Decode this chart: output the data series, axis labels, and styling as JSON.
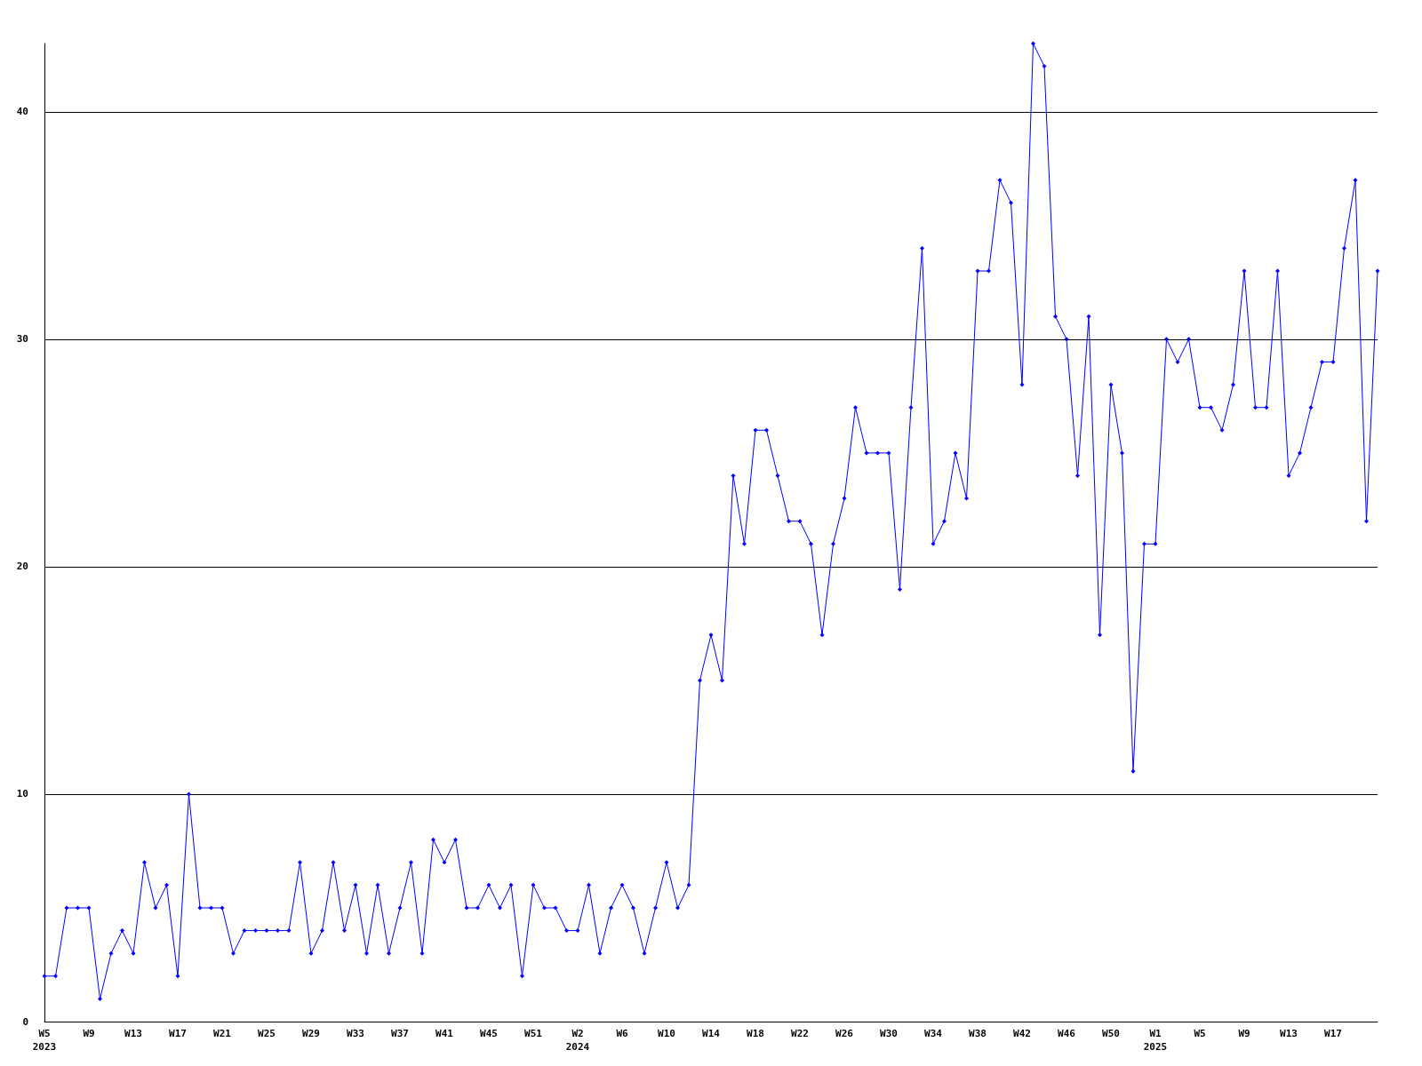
{
  "chart_data": {
    "type": "line",
    "categories": [
      "W5\n2023",
      null,
      null,
      null,
      "W9",
      null,
      null,
      null,
      "W13",
      null,
      null,
      null,
      "W17",
      null,
      null,
      null,
      "W21",
      null,
      null,
      null,
      "W25",
      null,
      null,
      null,
      "W29",
      null,
      null,
      null,
      "W33",
      null,
      null,
      null,
      "W37",
      null,
      null,
      null,
      "W41",
      null,
      null,
      null,
      "W45",
      null,
      null,
      null,
      "W51",
      null,
      null,
      null,
      "W2\n2024",
      null,
      null,
      null,
      "W6",
      null,
      null,
      null,
      "W10",
      null,
      null,
      null,
      "W14",
      null,
      null,
      null,
      "W18",
      null,
      null,
      null,
      "W22",
      null,
      null,
      null,
      "W26",
      null,
      null,
      null,
      "W30",
      null,
      null,
      null,
      "W34",
      null,
      null,
      null,
      "W38",
      null,
      null,
      null,
      "W42",
      null,
      null,
      null,
      "W46",
      null,
      null,
      null,
      "W50",
      null,
      null,
      null,
      "W1\n2025",
      null,
      null,
      null,
      "W5",
      null,
      null,
      null,
      "W9",
      null,
      null,
      null,
      "W13",
      null,
      null,
      null,
      "W17",
      null,
      null,
      null,
      null
    ],
    "series": [
      {
        "color": "#0000ff",
        "values": [
          2,
          2,
          5,
          5,
          5,
          1,
          3,
          4,
          3,
          7,
          5,
          6,
          2,
          10,
          5,
          5,
          5,
          3,
          4,
          4,
          4,
          4,
          4,
          7,
          3,
          4,
          7,
          4,
          6,
          3,
          6,
          3,
          5,
          7,
          3,
          8,
          7,
          8,
          5,
          5,
          6,
          5,
          6,
          2,
          6,
          5,
          5,
          4,
          4,
          6,
          3,
          5,
          6,
          5,
          3,
          5,
          7,
          5,
          6,
          15,
          17,
          15,
          24,
          21,
          26,
          26,
          24,
          22,
          22,
          21,
          17,
          21,
          23,
          27,
          25,
          25,
          25,
          19,
          27,
          34,
          21,
          22,
          25,
          23,
          33,
          33,
          37,
          36,
          28,
          43,
          42,
          31,
          30,
          24,
          31,
          17,
          28,
          25,
          11,
          21,
          21,
          30,
          29,
          30,
          27,
          27,
          26,
          28,
          33,
          27,
          27,
          33,
          24,
          25,
          27,
          29,
          29,
          34,
          37,
          22,
          33
        ]
      }
    ],
    "ylim": [
      0,
      43
    ],
    "yticks": [
      0,
      10,
      20,
      30,
      40
    ],
    "grid": "y",
    "marker": "diamond",
    "line_style": "solid"
  }
}
